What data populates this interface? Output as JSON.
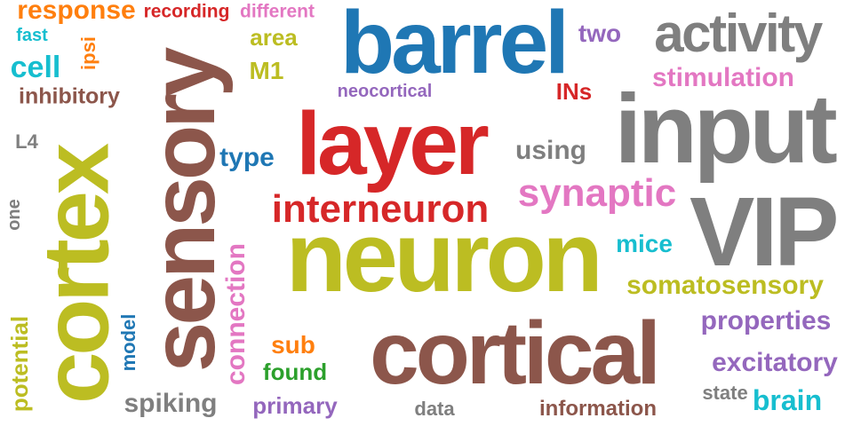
{
  "colors": {
    "orange": "#ff7f0e",
    "red": "#d62728",
    "pink": "#e377c2",
    "olive": "#bcbd22",
    "blue": "#1f77b4",
    "purple": "#9467bd",
    "gray": "#7f7f7f",
    "brown": "#8c564b",
    "cyan": "#17becf",
    "green": "#2ca02c"
  },
  "words": {
    "response": "response",
    "recording": "recording",
    "different": "different",
    "barrel": "barrel",
    "two": "two",
    "activity": "activity",
    "fast": "fast",
    "area": "area",
    "ipsi": "ipsi",
    "cell": "cell",
    "M1": "M1",
    "stimulation": "stimulation",
    "inhibitory": "inhibitory",
    "neocortical": "neocortical",
    "INs": "INs",
    "layer": "layer",
    "input": "input",
    "cortex": "cortex",
    "sensory": "sensory",
    "L4": "L4",
    "type": "type",
    "using": "using",
    "synaptic": "synaptic",
    "one": "one",
    "interneuron": "interneuron",
    "VIP": "VIP",
    "mice": "mice",
    "neuron": "neuron",
    "connection": "connection",
    "somatosensory": "somatosensory",
    "potential": "potential",
    "properties": "properties",
    "sub": "sub",
    "model": "model",
    "cortical": "cortical",
    "excitatory": "excitatory",
    "found": "found",
    "spiking": "spiking",
    "primary": "primary",
    "state": "state",
    "brain": "brain",
    "data": "data",
    "information": "information"
  }
}
